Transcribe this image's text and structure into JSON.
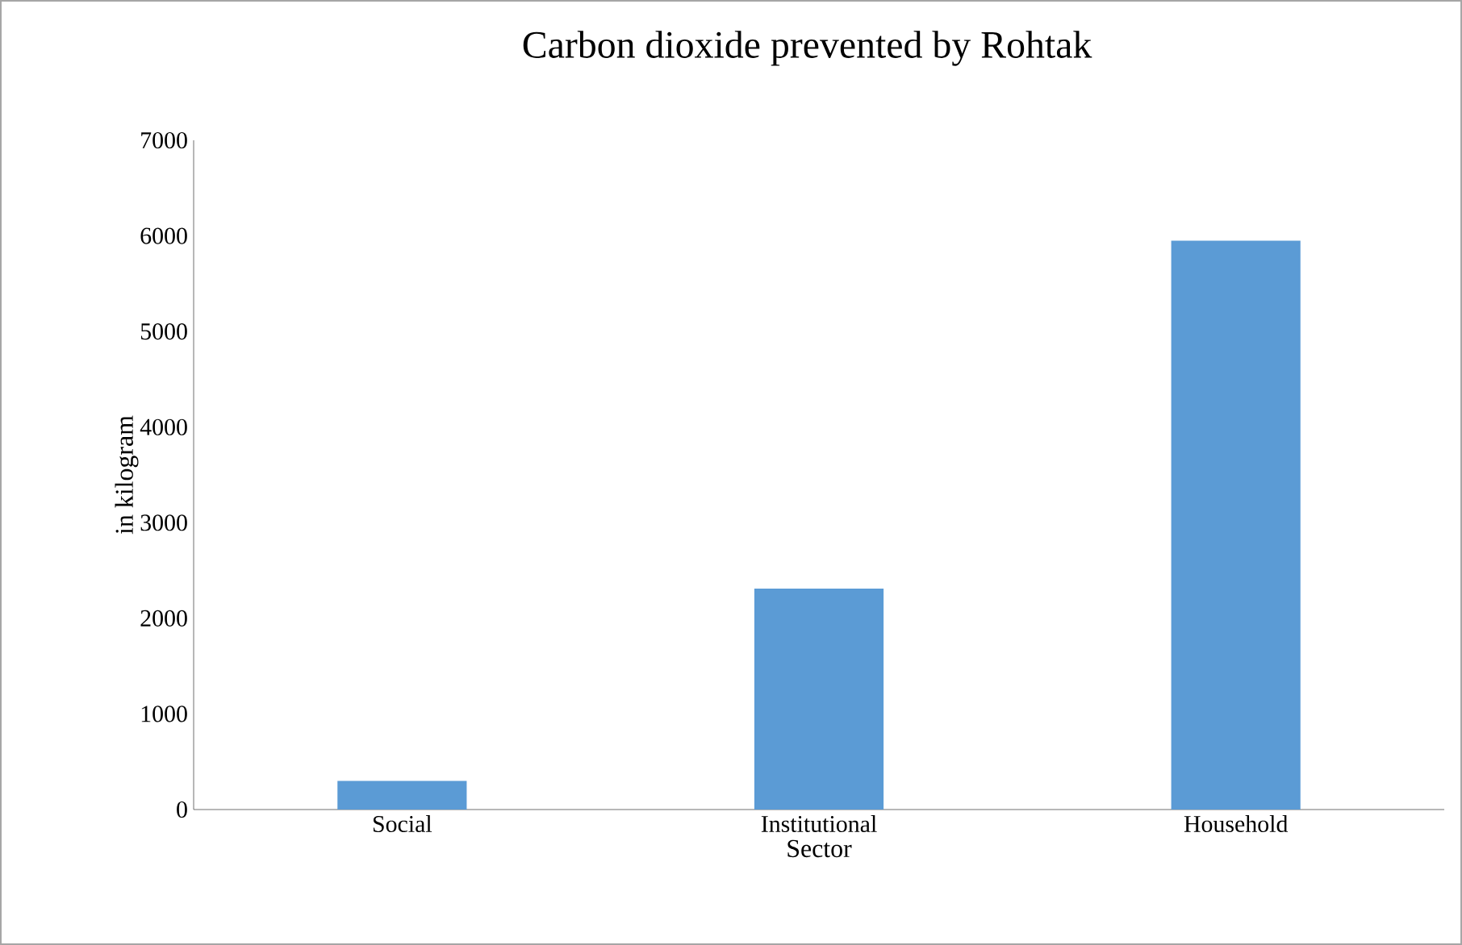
{
  "chart_data": {
    "type": "bar",
    "title": "Carbon dioxide prevented by Rohtak",
    "xlabel": "Sector",
    "ylabel": "in kilogram",
    "categories": [
      "Social",
      "Institutional",
      "Household"
    ],
    "values": [
      300,
      2310,
      5950
    ],
    "color": "#5b9bd5",
    "ylim": [
      0,
      7000
    ],
    "yticks": [
      0,
      1000,
      2000,
      3000,
      4000,
      5000,
      6000,
      7000
    ]
  }
}
